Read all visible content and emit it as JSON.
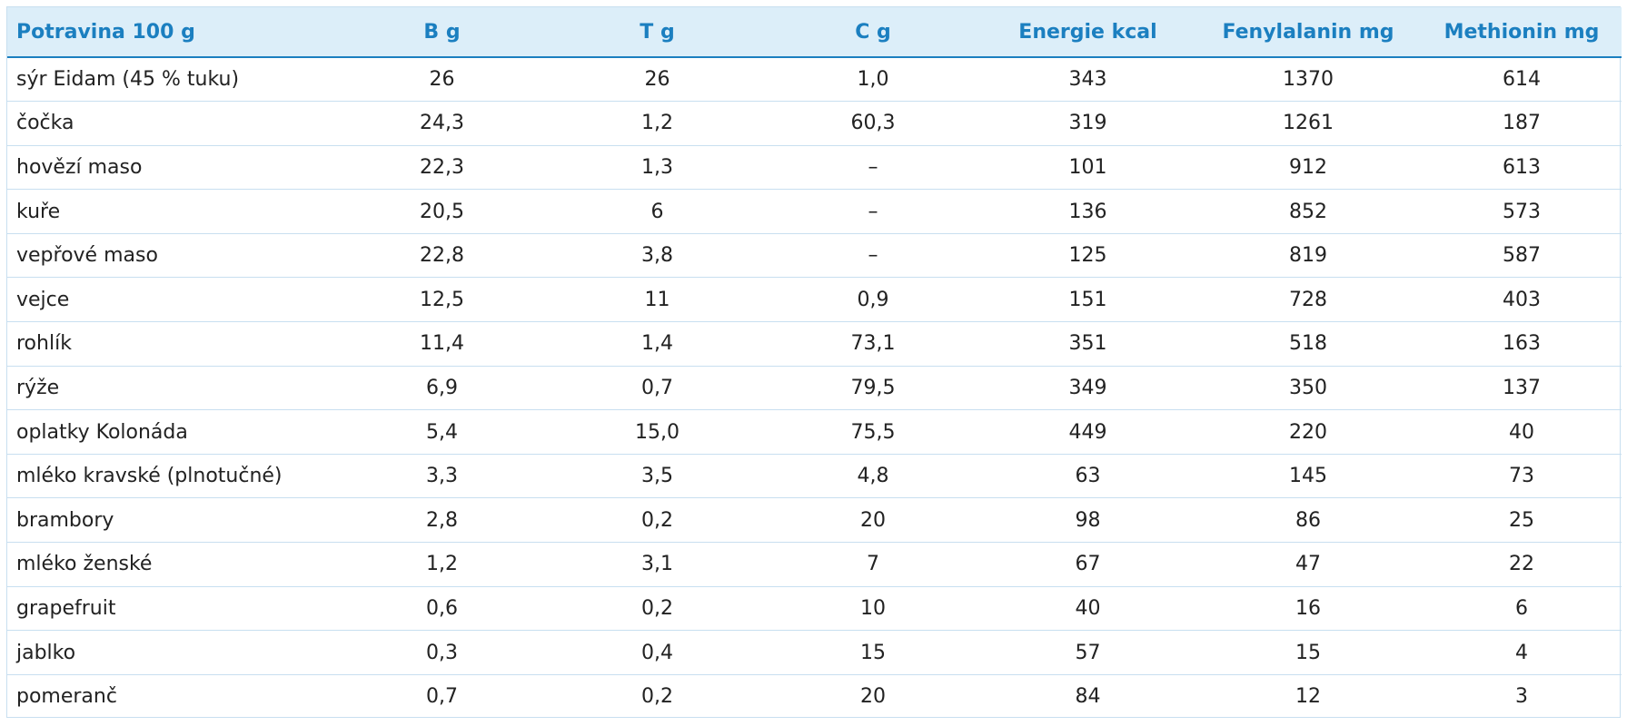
{
  "table": {
    "headers": [
      "Potravina 100 g",
      "B g",
      "T g",
      "C g",
      "Energie kcal",
      "Fenylalanin mg",
      "Methionin mg"
    ],
    "rows": [
      [
        "sýr Eidam (45 % tuku)",
        "26",
        "26",
        "1,0",
        "343",
        "1370",
        "614"
      ],
      [
        "čočka",
        "24,3",
        "1,2",
        "60,3",
        "319",
        "1261",
        "187"
      ],
      [
        "hovězí maso",
        "22,3",
        "1,3",
        "–",
        "101",
        "912",
        "613"
      ],
      [
        "kuře",
        "20,5",
        "6",
        "–",
        "136",
        "852",
        "573"
      ],
      [
        "vepřové maso",
        "22,8",
        "3,8",
        "–",
        "125",
        "819",
        "587"
      ],
      [
        "vejce",
        "12,5",
        "11",
        "0,9",
        "151",
        "728",
        "403"
      ],
      [
        "rohlík",
        "11,4",
        "1,4",
        "73,1",
        "351",
        "518",
        "163"
      ],
      [
        "rýže",
        "6,9",
        "0,7",
        "79,5",
        "349",
        "350",
        "137"
      ],
      [
        "oplatky Kolonáda",
        "5,4",
        "15,0",
        "75,5",
        "449",
        "220",
        "40"
      ],
      [
        "mléko kravské (plnotučné)",
        "3,3",
        "3,5",
        "4,8",
        "63",
        "145",
        "73"
      ],
      [
        "brambory",
        "2,8",
        "0,2",
        "20",
        "98",
        "86",
        "25"
      ],
      [
        "mléko ženské",
        "1,2",
        "3,1",
        "7",
        "67",
        "47",
        "22"
      ],
      [
        "grapefruit",
        "0,6",
        "0,2",
        "10",
        "40",
        "16",
        "6"
      ],
      [
        "jablko",
        "0,3",
        "0,4",
        "15",
        "57",
        "15",
        "4"
      ],
      [
        "pomeranč",
        "0,7",
        "0,2",
        "20",
        "84",
        "12",
        "3"
      ]
    ]
  },
  "colors": {
    "header_text": "#1b7fc0",
    "header_background": "#dceef9",
    "grid_lines": "#c8dff0",
    "body_text": "#222222"
  }
}
